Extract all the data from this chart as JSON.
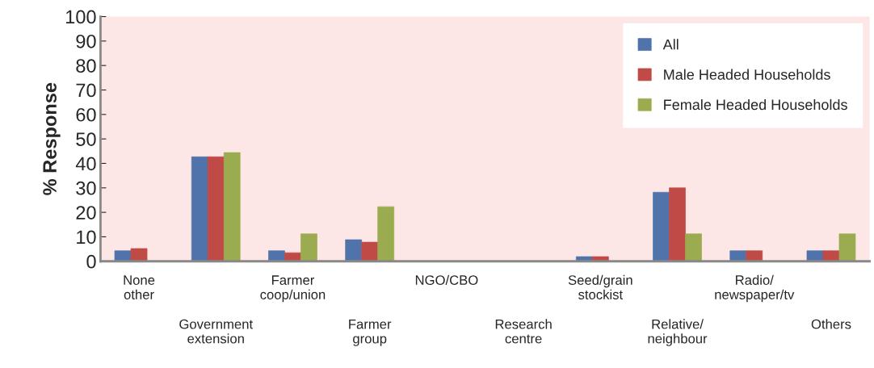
{
  "chart_data": {
    "type": "bar",
    "ylabel": "% Response",
    "categories": [
      "None\nother",
      "Government\nextension",
      "Farmer\ncoop/union",
      "Farmer\ngroup",
      "NGO/CBO",
      "Research\ncentre",
      "Seed/grain\nstockist",
      "Relative/\nneighbour",
      "Radio/\nnewspaper/tv",
      "Others"
    ],
    "series": [
      {
        "name": "All",
        "color": "#4f73aa",
        "values": [
          4.3,
          42.7,
          4.3,
          8.8,
          0,
          0,
          1.9,
          28.2,
          4.3,
          4.3
        ]
      },
      {
        "name": "Male Headed Households",
        "color": "#c04a45",
        "values": [
          5.2,
          42.7,
          3.5,
          7.8,
          0,
          0,
          1.9,
          30.0,
          4.3,
          4.3
        ]
      },
      {
        "name": "Female Headed Households",
        "color": "#9bab4f",
        "values": [
          0,
          44.4,
          11.2,
          22.3,
          0,
          0,
          0,
          11.2,
          0,
          11.2
        ]
      }
    ],
    "ylim": [
      0,
      100
    ],
    "yticks": [
      0,
      10,
      20,
      30,
      40,
      50,
      60,
      70,
      80,
      90,
      100
    ],
    "grid": false,
    "legend": "top right"
  }
}
